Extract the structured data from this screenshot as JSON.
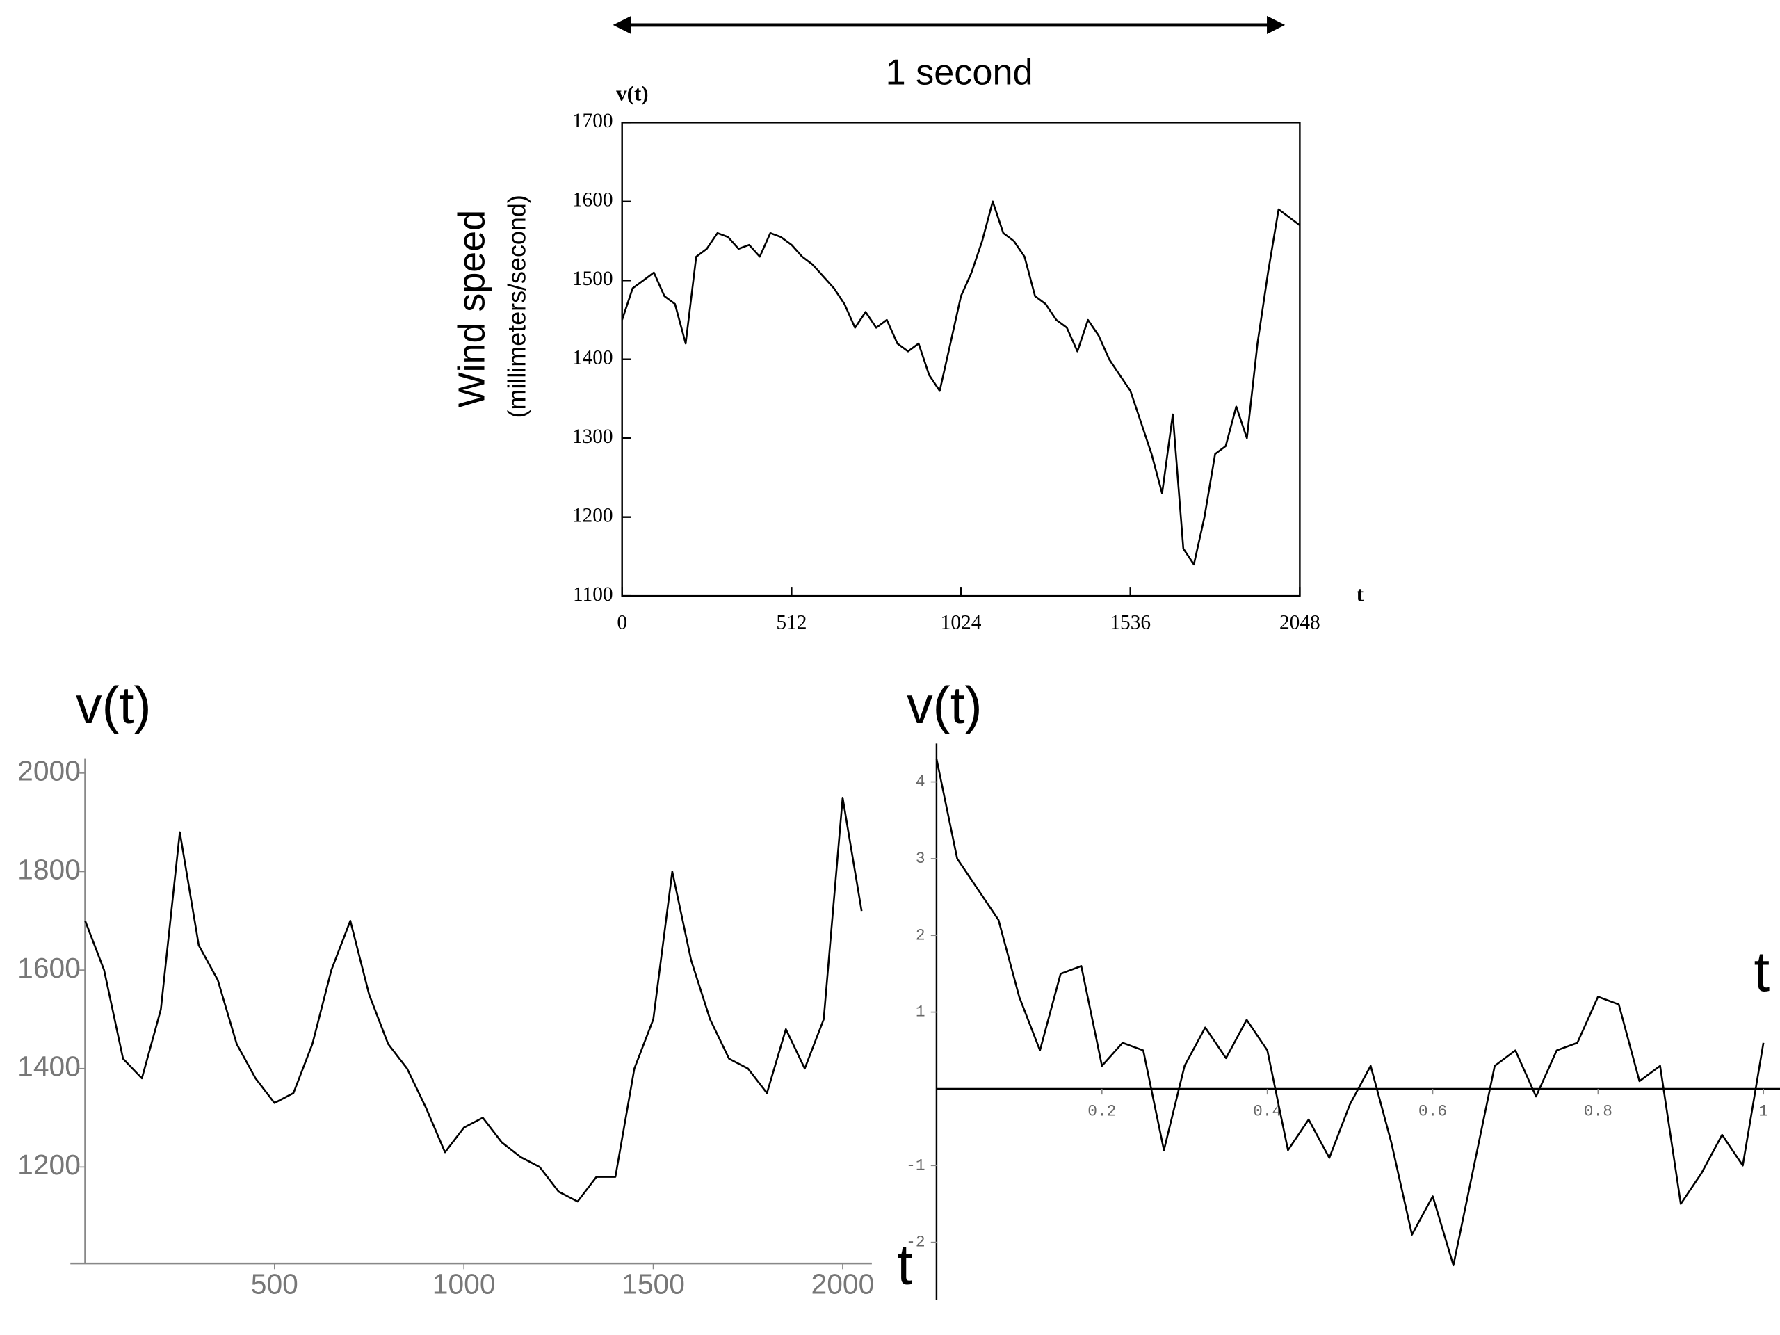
{
  "chart_data": [
    {
      "type": "line",
      "color": "#000000",
      "annotation": "1 second",
      "ylabel": "v(t)",
      "xlabel": "t",
      "ylabel_title": "Wind speed",
      "ylabel_unit": "(millimeters/second)",
      "x": [
        0,
        32,
        64,
        96,
        128,
        160,
        192,
        224,
        256,
        288,
        320,
        352,
        384,
        416,
        448,
        480,
        512,
        544,
        576,
        608,
        640,
        672,
        704,
        736,
        768,
        800,
        832,
        864,
        896,
        928,
        960,
        992,
        1024,
        1056,
        1088,
        1120,
        1152,
        1184,
        1216,
        1248,
        1280,
        1312,
        1344,
        1376,
        1408,
        1440,
        1472,
        1504,
        1536,
        1568,
        1600,
        1632,
        1664,
        1696,
        1728,
        1760,
        1792,
        1824,
        1856,
        1888,
        1920,
        1952,
        1984,
        2016,
        2048
      ],
      "values": [
        1450,
        1490,
        1500,
        1510,
        1480,
        1470,
        1420,
        1530,
        1540,
        1560,
        1555,
        1540,
        1545,
        1530,
        1560,
        1555,
        1545,
        1530,
        1520,
        1505,
        1490,
        1470,
        1440,
        1460,
        1440,
        1450,
        1420,
        1410,
        1420,
        1380,
        1360,
        1420,
        1480,
        1510,
        1550,
        1600,
        1560,
        1550,
        1530,
        1480,
        1470,
        1450,
        1440,
        1410,
        1450,
        1430,
        1400,
        1380,
        1360,
        1320,
        1280,
        1230,
        1330,
        1160,
        1140,
        1200,
        1280,
        1290,
        1340,
        1300,
        1420,
        1510,
        1590,
        1580,
        1570
      ],
      "xlim": [
        0,
        2048
      ],
      "ylim": [
        1100,
        1700
      ],
      "xticks": [
        0,
        512,
        1024,
        1536,
        2048
      ],
      "yticks": [
        1100,
        1200,
        1300,
        1400,
        1500,
        1600,
        1700
      ]
    },
    {
      "type": "line",
      "color": "#000000",
      "ylabel": "v(t)",
      "xlabel": "t",
      "x": [
        0,
        50,
        100,
        150,
        200,
        250,
        300,
        350,
        400,
        450,
        500,
        550,
        600,
        650,
        700,
        750,
        800,
        850,
        900,
        950,
        1000,
        1050,
        1100,
        1150,
        1200,
        1250,
        1300,
        1350,
        1400,
        1450,
        1500,
        1550,
        1600,
        1650,
        1700,
        1750,
        1800,
        1850,
        1900,
        1950,
        2000,
        2050
      ],
      "values": [
        1700,
        1600,
        1420,
        1380,
        1520,
        1880,
        1650,
        1580,
        1450,
        1380,
        1330,
        1350,
        1450,
        1600,
        1700,
        1550,
        1450,
        1400,
        1320,
        1230,
        1280,
        1300,
        1250,
        1220,
        1200,
        1150,
        1130,
        1180,
        1180,
        1400,
        1500,
        1800,
        1620,
        1500,
        1420,
        1400,
        1350,
        1480,
        1400,
        1500,
        1950,
        1720
      ],
      "xlim": [
        0,
        2077
      ],
      "ylim": [
        1004,
        2060
      ],
      "xticks": [
        500,
        1000,
        1500,
        2000
      ],
      "yticks": [
        1200,
        1400,
        1600,
        1800,
        2000
      ]
    },
    {
      "type": "line",
      "color": "#000000",
      "ylabel": "v(t)",
      "xlabel": "t",
      "x": [
        0,
        0.025,
        0.05,
        0.075,
        0.1,
        0.125,
        0.15,
        0.175,
        0.2,
        0.225,
        0.25,
        0.275,
        0.3,
        0.325,
        0.35,
        0.375,
        0.4,
        0.425,
        0.45,
        0.475,
        0.5,
        0.525,
        0.55,
        0.575,
        0.6,
        0.625,
        0.65,
        0.675,
        0.7,
        0.725,
        0.75,
        0.775,
        0.8,
        0.825,
        0.85,
        0.875,
        0.9,
        0.925,
        0.95,
        0.975,
        1
      ],
      "values": [
        4.3,
        3.0,
        2.6,
        2.2,
        1.2,
        0.5,
        1.5,
        1.6,
        0.3,
        0.6,
        0.5,
        -0.8,
        0.3,
        0.8,
        0.4,
        0.9,
        0.5,
        -0.8,
        -0.4,
        -0.9,
        -0.2,
        0.3,
        -0.7,
        -1.9,
        -1.4,
        -2.3,
        -1.0,
        0.3,
        0.5,
        -0.1,
        0.5,
        0.6,
        1.2,
        1.1,
        0.1,
        0.3,
        -1.5,
        -1.1,
        -0.6,
        -1.0,
        0.6
      ],
      "xlim": [
        0,
        1.02
      ],
      "ylim": [
        -2.75,
        4.5
      ],
      "xticks": [
        0.2,
        0.4,
        0.6,
        0.8,
        1
      ],
      "yticks": [
        -2,
        -1,
        1,
        2,
        3,
        4
      ]
    }
  ]
}
